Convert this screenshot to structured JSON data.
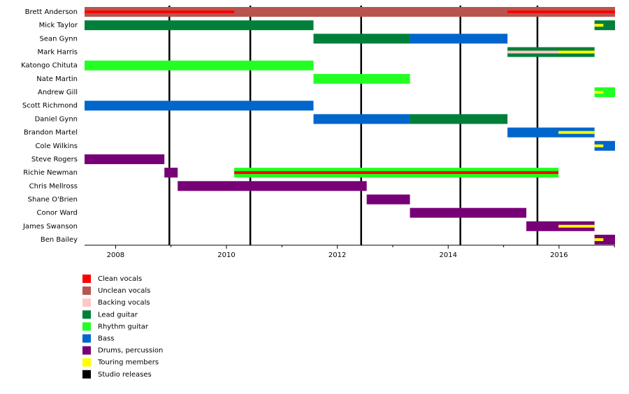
{
  "chart_data": {
    "type": "timeline",
    "categories": [
      "Brett Anderson",
      "Mick Taylor",
      "Sean Gynn",
      "Mark Harris",
      "Katongo Chituta",
      "Nate Martin",
      "Andrew Gill",
      "Scott Richmond",
      "Daniel Gynn",
      "Brandon Martel",
      "Cole Wilkins",
      "Steve Rogers",
      "Richie Newman",
      "Chris Mellross",
      "Shane O'Brien",
      "Conor Ward",
      "James Swanson",
      "Ben Bailey"
    ],
    "xlim": [
      2007.44,
      2017.01
    ],
    "xticks": [
      2008,
      2010,
      2012,
      2014,
      2016
    ],
    "minor_xticks": [
      2009,
      2011,
      2013,
      2015,
      2017
    ],
    "series": [
      {
        "name": "Clean vocals",
        "color": "#ff0000",
        "thin": true,
        "values": [
          [
            [
              2007.44,
              2010.14
            ],
            [
              2015.07,
              2017.01
            ]
          ],
          null,
          null,
          null,
          null,
          null,
          null,
          null,
          null,
          null,
          null,
          null,
          [
            [
              2010.14,
              2015.99
            ]
          ],
          null,
          null,
          null,
          null,
          null
        ]
      },
      {
        "name": "Unclean vocals",
        "color": "#b85450",
        "thin": false,
        "values": [
          [
            [
              2007.44,
              2017.01
            ]
          ],
          null,
          null,
          null,
          null,
          null,
          null,
          null,
          null,
          null,
          null,
          null,
          null,
          null,
          null,
          null,
          null,
          null
        ]
      },
      {
        "name": "Backing vocals",
        "color": "#ffc8c8",
        "thin": true,
        "values": [
          null,
          null,
          null,
          [
            [
              2015.07,
              2016.64
            ]
          ],
          null,
          null,
          null,
          null,
          null,
          null,
          null,
          null,
          null,
          null,
          null,
          null,
          null,
          null
        ]
      },
      {
        "name": "Lead guitar",
        "color": "#007f3a",
        "thin": false,
        "values": [
          null,
          [
            [
              2007.44,
              2011.57
            ],
            [
              2016.64,
              2017.01
            ]
          ],
          [
            [
              2011.57,
              2013.31
            ]
          ],
          [
            [
              2015.07,
              2016.64
            ]
          ],
          null,
          null,
          null,
          null,
          [
            [
              2013.31,
              2015.07
            ]
          ],
          null,
          null,
          null,
          null,
          null,
          null,
          null,
          null,
          null
        ]
      },
      {
        "name": "Rhythm guitar",
        "color": "#22ff22",
        "thin": false,
        "values": [
          null,
          null,
          null,
          null,
          [
            [
              2007.44,
              2011.57
            ]
          ],
          [
            [
              2011.57,
              2013.31
            ]
          ],
          [
            [
              2016.64,
              2017.01
            ]
          ],
          null,
          null,
          null,
          null,
          null,
          [
            [
              2010.14,
              2015.99
            ]
          ],
          null,
          null,
          null,
          null,
          null
        ]
      },
      {
        "name": "Bass",
        "color": "#0066cc",
        "thin": false,
        "values": [
          null,
          null,
          [
            [
              2013.31,
              2015.07
            ]
          ],
          null,
          null,
          null,
          null,
          [
            [
              2007.44,
              2011.57
            ]
          ],
          [
            [
              2011.57,
              2013.31
            ]
          ],
          [
            [
              2015.07,
              2016.64
            ]
          ],
          [
            [
              2016.64,
              2017.01
            ]
          ],
          null,
          null,
          null,
          null,
          null,
          null,
          null
        ]
      },
      {
        "name": "Drums, percussion",
        "color": "#770077",
        "thin": false,
        "values": [
          null,
          null,
          null,
          null,
          null,
          null,
          null,
          null,
          null,
          null,
          null,
          [
            [
              2007.44,
              2008.88
            ]
          ],
          [
            [
              2008.88,
              2009.12
            ]
          ],
          [
            [
              2009.12,
              2012.53
            ]
          ],
          [
            [
              2012.53,
              2013.31
            ]
          ],
          [
            [
              2013.31,
              2015.41
            ]
          ],
          [
            [
              2015.41,
              2016.64
            ]
          ],
          [
            [
              2016.64,
              2017.01
            ]
          ]
        ]
      },
      {
        "name": "Touring members",
        "color": "#ffff00",
        "thin": true,
        "values": [
          null,
          [
            [
              2016.64,
              2016.8
            ]
          ],
          null,
          [
            [
              2015.99,
              2016.64
            ]
          ],
          null,
          null,
          [
            [
              2016.64,
              2016.8
            ]
          ],
          null,
          null,
          [
            [
              2015.99,
              2016.64
            ]
          ],
          [
            [
              2016.64,
              2016.8
            ]
          ],
          null,
          null,
          null,
          null,
          null,
          [
            [
              2015.99,
              2016.64
            ]
          ],
          [
            [
              2016.64,
              2016.8
            ]
          ]
        ]
      },
      {
        "name": "Studio releases",
        "color": "#000000",
        "markers": [
          2008.97,
          2010.43,
          2012.43,
          2014.22,
          2015.61
        ]
      }
    ]
  }
}
